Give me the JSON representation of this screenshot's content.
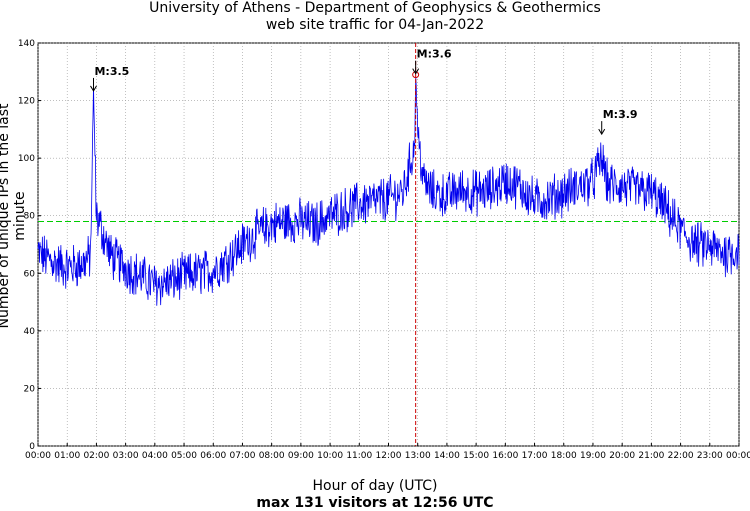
{
  "chart_data": {
    "type": "line",
    "title": "University of Athens - Department of Geophysics & Geothermics",
    "subtitle": "web site traffic for 04-Jan-2022",
    "xlabel": "Hour of day (UTC)",
    "footer": "max 131 visitors at 12:56 UTC",
    "ylabel": "Number of unique IPs in the last minute",
    "xlim": [
      0,
      24
    ],
    "ylim": [
      0,
      140
    ],
    "x_ticks": [
      "00:00",
      "01:00",
      "02:00",
      "03:00",
      "04:00",
      "05:00",
      "06:00",
      "07:00",
      "08:00",
      "09:00",
      "10:00",
      "11:00",
      "12:00",
      "13:00",
      "14:00",
      "15:00",
      "16:00",
      "17:00",
      "18:00",
      "19:00",
      "20:00",
      "21:00",
      "22:00",
      "23:00",
      "00:00"
    ],
    "y_ticks": [
      0,
      20,
      40,
      60,
      80,
      100,
      120,
      140
    ],
    "grid": true,
    "series": [
      {
        "color": "#0000ee",
        "x": [
          0,
          0.5,
          1,
          1.5,
          1.8,
          1.9,
          2.0,
          2.5,
          3,
          3.5,
          4,
          4.5,
          5,
          5.5,
          6,
          6.5,
          7,
          7.5,
          8,
          8.5,
          9,
          9.5,
          10,
          10.5,
          11,
          11.5,
          12,
          12.5,
          12.9,
          12.93,
          13.0,
          13.2,
          13.5,
          14,
          14.5,
          15,
          15.5,
          16,
          16.5,
          17,
          17.5,
          18,
          18.5,
          19,
          19.3,
          19.5,
          20,
          20.5,
          21,
          21.5,
          22,
          22.5,
          23,
          23.5,
          24
        ],
        "y": [
          67,
          64,
          62,
          63,
          66,
          123,
          80,
          66,
          62,
          59,
          56,
          57,
          59,
          60,
          61,
          65,
          70,
          74,
          77,
          78,
          78,
          77,
          80,
          82,
          84,
          85,
          86,
          88,
          105,
          131,
          108,
          92,
          88,
          87,
          89,
          88,
          89,
          92,
          90,
          85,
          86,
          88,
          90,
          92,
          100,
          91,
          90,
          89,
          88,
          82,
          75,
          70,
          69,
          67,
          68
        ]
      }
    ],
    "average_line": {
      "value": 78,
      "color": "#00cc00"
    },
    "max_marker": {
      "x": 12.93,
      "label": "",
      "color": "#cc0000"
    },
    "annotations": [
      {
        "label": "M:3.5",
        "x": 1.9,
        "y": 123
      },
      {
        "label": "M:3.6",
        "x": 12.93,
        "y": 129
      },
      {
        "label": "M:3.9",
        "x": 19.3,
        "y": 108
      }
    ]
  }
}
